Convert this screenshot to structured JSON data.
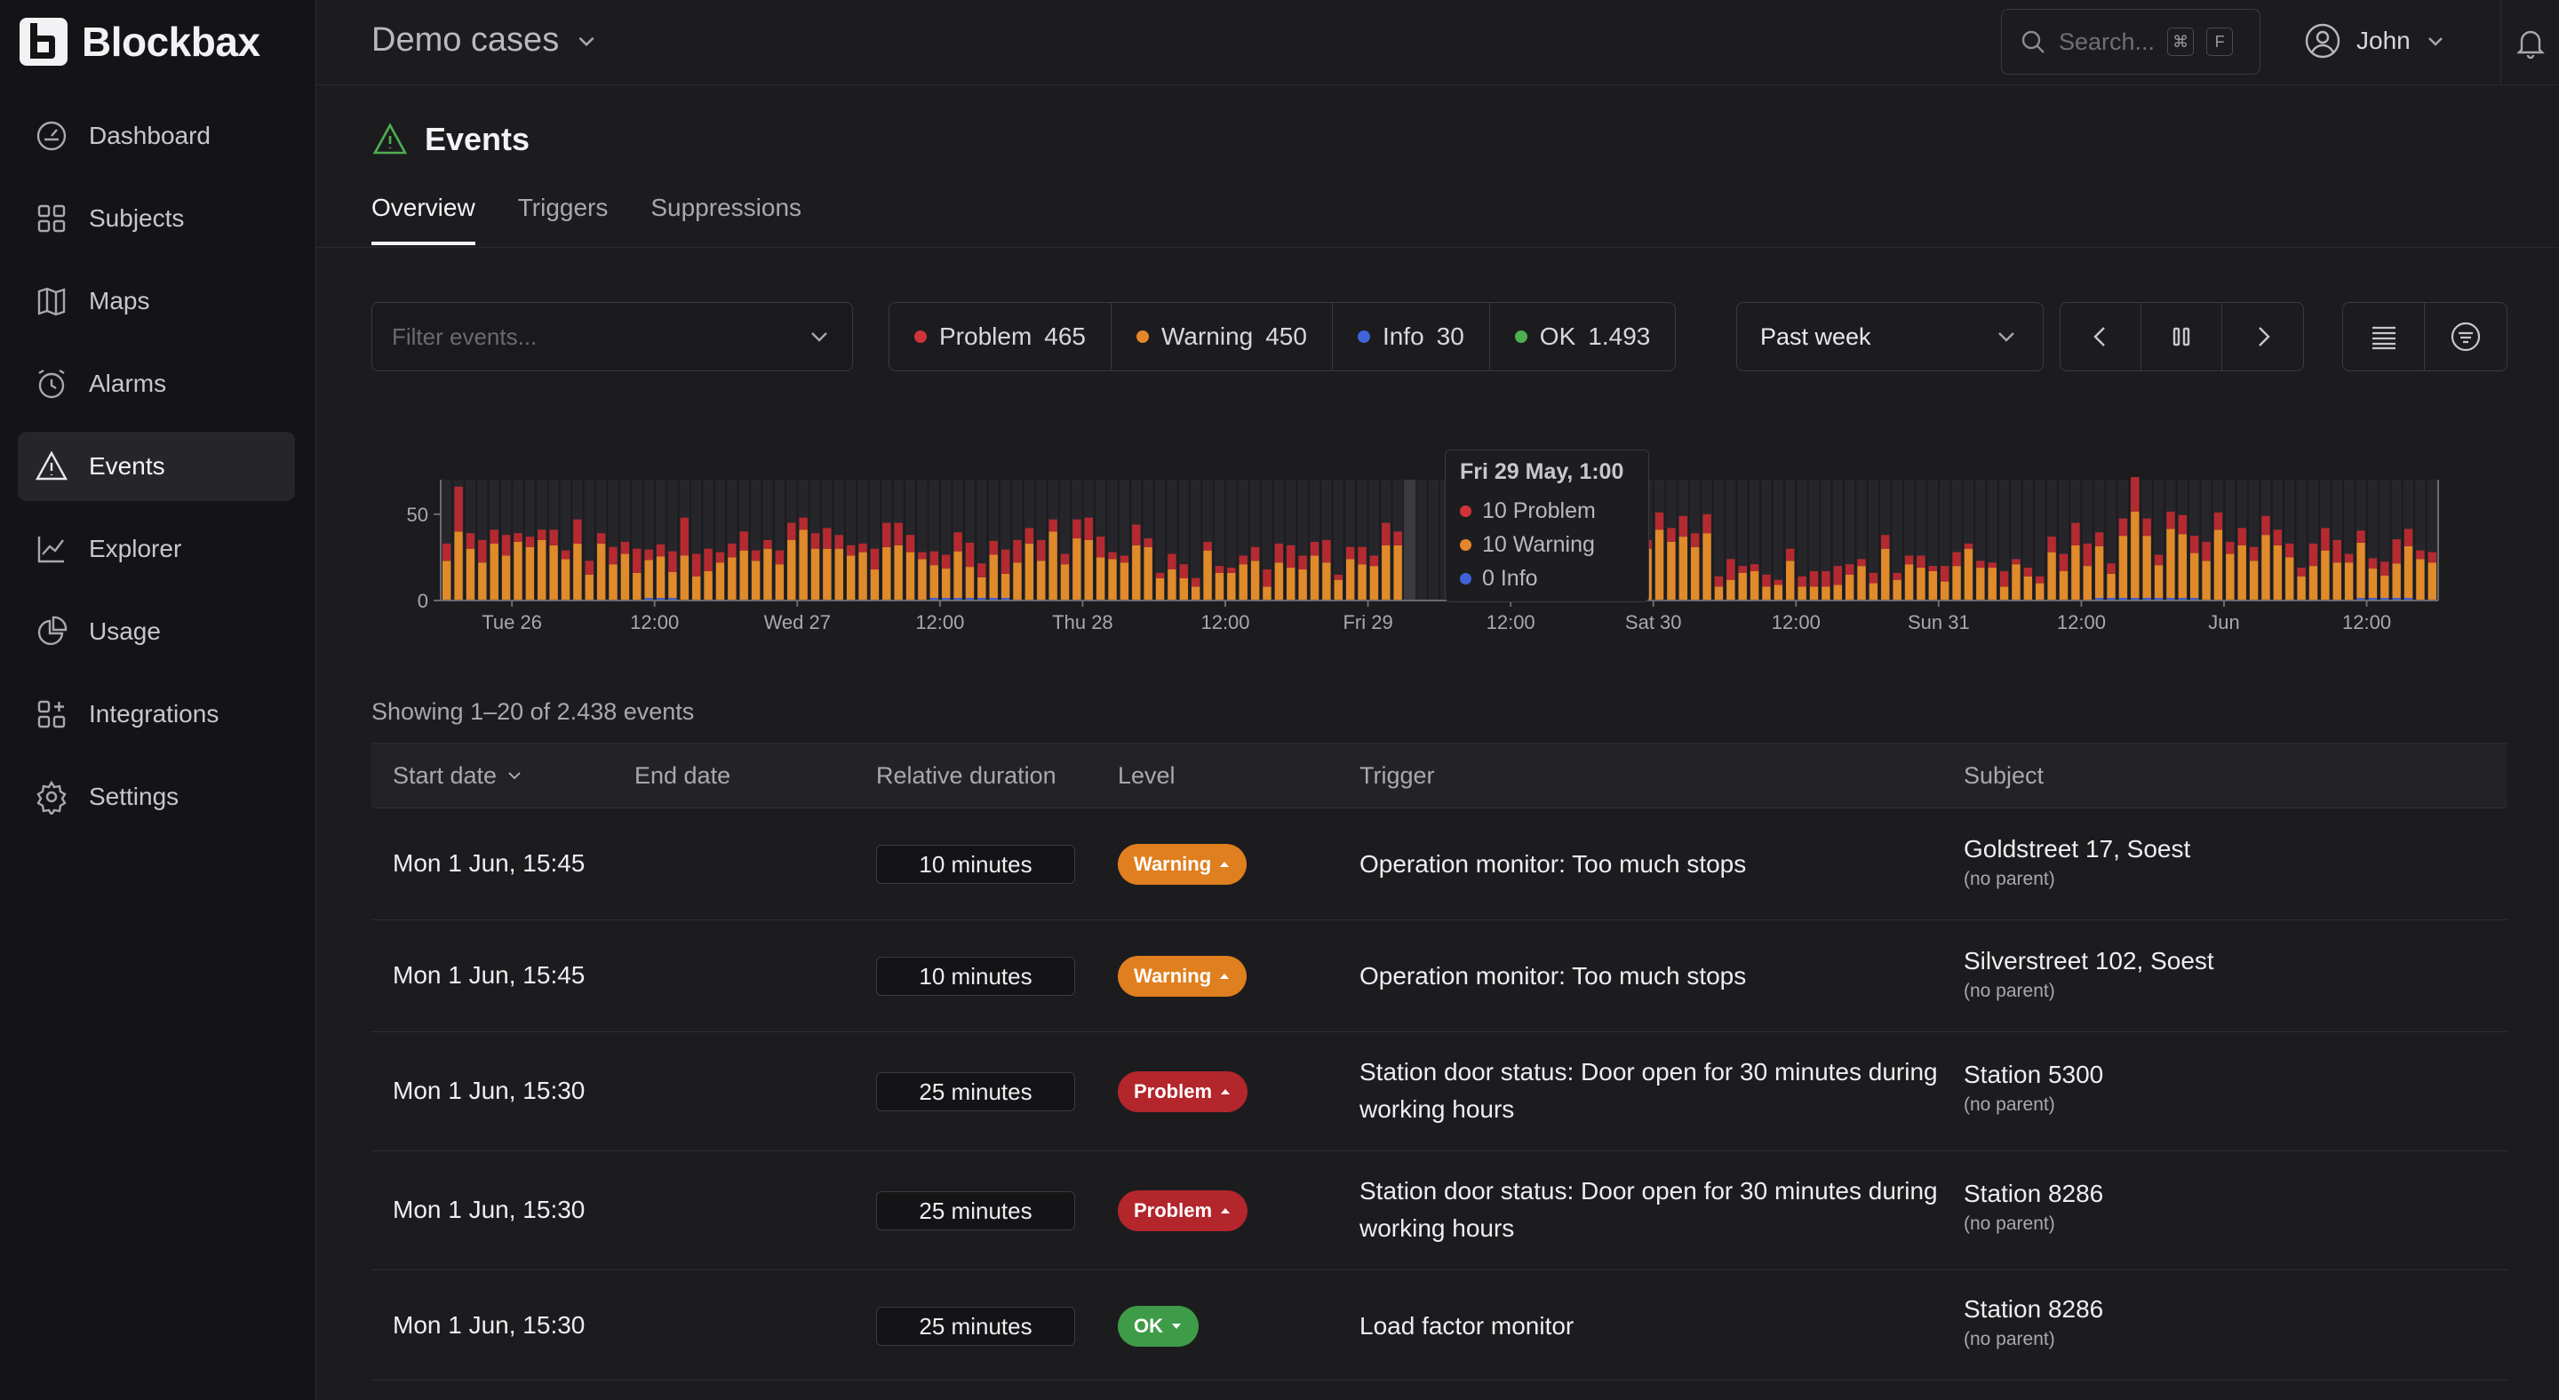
{
  "app": {
    "name": "Blockbax",
    "workspace": "Demo cases"
  },
  "sidebar": {
    "items": [
      {
        "label": "Dashboard",
        "icon": "dashboard-icon"
      },
      {
        "label": "Subjects",
        "icon": "subjects-icon"
      },
      {
        "label": "Maps",
        "icon": "map-icon"
      },
      {
        "label": "Alarms",
        "icon": "alarm-clock-icon"
      },
      {
        "label": "Events",
        "icon": "warning-triangle-icon",
        "active": true
      },
      {
        "label": "Explorer",
        "icon": "line-chart-icon"
      },
      {
        "label": "Usage",
        "icon": "pie-chart-icon"
      },
      {
        "label": "Integrations",
        "icon": "integrations-icon"
      },
      {
        "label": "Settings",
        "icon": "gear-icon"
      }
    ]
  },
  "header": {
    "search_placeholder": "Search...",
    "kbd_cmd": "⌘",
    "kbd_key": "F",
    "user": "John"
  },
  "page": {
    "title": "Events",
    "tabs": [
      "Overview",
      "Triggers",
      "Suppressions"
    ],
    "filter_placeholder": "Filter events...",
    "levels": [
      {
        "label": "Problem",
        "count": "465",
        "color": "#d0343a"
      },
      {
        "label": "Warning",
        "count": "450",
        "color": "#e6862a"
      },
      {
        "label": "Info",
        "count": "30",
        "color": "#3f63d8"
      },
      {
        "label": "OK",
        "count": "1.493",
        "color": "#4caf50"
      }
    ],
    "period": "Past week"
  },
  "chart_data": {
    "type": "bar",
    "stacked": true,
    "ylim": [
      0,
      70
    ],
    "y_ticks": [
      "0",
      "50"
    ],
    "x_ticks": [
      "Tue 26",
      "12:00",
      "Wed 27",
      "12:00",
      "Thu 28",
      "12:00",
      "Fri 29",
      "12:00",
      "Sat 30",
      "12:00",
      "Sun 31",
      "12:00",
      "Jun",
      "12:00"
    ],
    "series": [
      {
        "name": "Problem",
        "color": "#b52a30"
      },
      {
        "name": "Warning",
        "color": "#e08a2a"
      },
      {
        "name": "Info",
        "color": "#3f63d8"
      }
    ],
    "tooltip": {
      "title": "Fri 29 May, 1:00",
      "rows": [
        {
          "value": 10,
          "label": "10 Problem",
          "color": "#d0343a"
        },
        {
          "value": 10,
          "label": "10 Warning",
          "color": "#e6862a"
        },
        {
          "value": 0,
          "label": "0 Info",
          "color": "#3f63d8"
        }
      ]
    }
  },
  "table": {
    "summary": "Showing 1–20 of 2.438 events",
    "columns": [
      "Start date",
      "End date",
      "Relative duration",
      "Level",
      "Trigger",
      "Subject"
    ],
    "rows": [
      {
        "start": "Mon 1 Jun, 15:45",
        "end": "",
        "duration": "10 minutes",
        "level": "Warning",
        "level_color": "#e07f1f",
        "direction": "up",
        "trigger": "Operation monitor: Too much stops",
        "subject": "Goldstreet 17, Soest",
        "parent": "(no parent)"
      },
      {
        "start": "Mon 1 Jun, 15:45",
        "end": "",
        "duration": "10 minutes",
        "level": "Warning",
        "level_color": "#e07f1f",
        "direction": "up",
        "trigger": "Operation monitor: Too much stops",
        "subject": "Silverstreet 102, Soest",
        "parent": "(no parent)"
      },
      {
        "start": "Mon 1 Jun, 15:30",
        "end": "",
        "duration": "25 minutes",
        "level": "Problem",
        "level_color": "#b3262c",
        "direction": "up",
        "trigger": "Station door status: Door open for 30 minutes during working hours",
        "subject": "Station 5300",
        "parent": "(no parent)"
      },
      {
        "start": "Mon 1 Jun, 15:30",
        "end": "",
        "duration": "25 minutes",
        "level": "Problem",
        "level_color": "#b3262c",
        "direction": "up",
        "trigger": "Station door status: Door open for 30 minutes during working hours",
        "subject": "Station 8286",
        "parent": "(no parent)"
      },
      {
        "start": "Mon 1 Jun, 15:30",
        "end": "",
        "duration": "25 minutes",
        "level": "OK",
        "level_color": "#3e9b47",
        "direction": "down",
        "trigger": "Load factor monitor",
        "subject": "Station 8286",
        "parent": "(no parent)"
      }
    ]
  }
}
